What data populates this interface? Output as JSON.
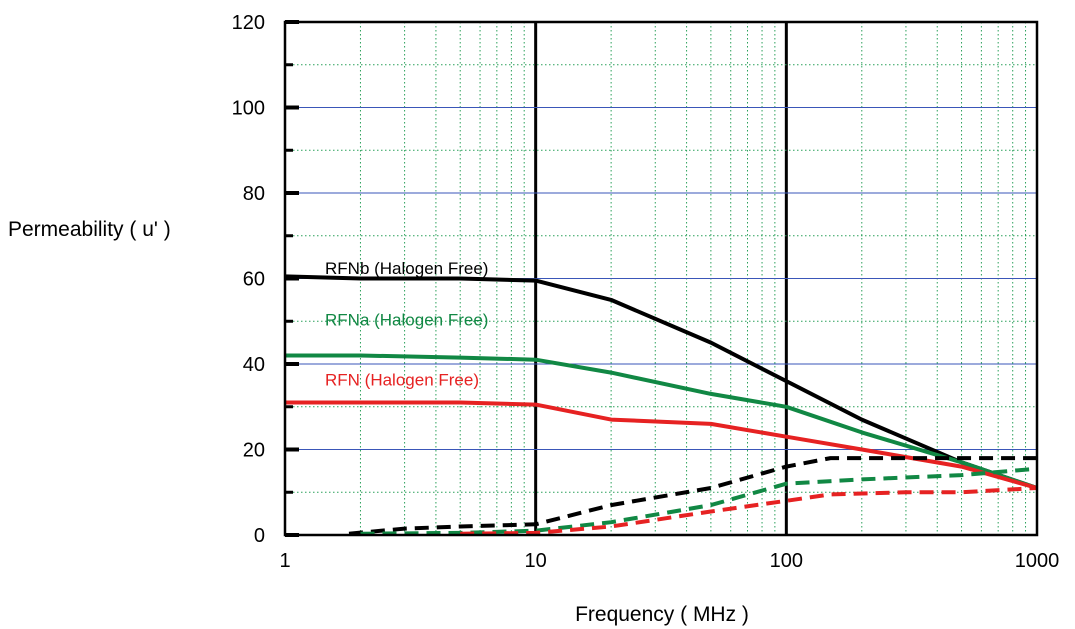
{
  "chart_data": {
    "type": "line",
    "xscale": "log",
    "xlim": [
      1,
      1000
    ],
    "ylim": [
      0,
      120
    ],
    "xlabel": "Frequency  ( MHz )",
    "ylabel": "Permeability ( u' )",
    "xticks": [
      "1",
      "10",
      "100",
      "1000"
    ],
    "yticks": [
      "0",
      "20",
      "40",
      "60",
      "80",
      "100",
      "120"
    ],
    "grid": true,
    "series": [
      {
        "name": "RFNb (Halogen Free)",
        "color": "#000000",
        "style": "solid",
        "x": [
          1,
          2,
          5,
          10,
          20,
          50,
          100,
          200,
          500,
          1000
        ],
        "y": [
          60.5,
          60,
          60,
          59.5,
          55,
          45,
          36,
          27,
          17,
          11
        ]
      },
      {
        "name": "RFNa (Halogen Free)",
        "color": "#118844",
        "style": "solid",
        "x": [
          1,
          2,
          5,
          10,
          20,
          50,
          100,
          200,
          500,
          1000
        ],
        "y": [
          42,
          42,
          41.5,
          41,
          38,
          33,
          30,
          24,
          17,
          11
        ]
      },
      {
        "name": "RFN   (Halogen Free)",
        "color": "#e62222",
        "style": "solid",
        "x": [
          1,
          2,
          5,
          10,
          20,
          50,
          100,
          200,
          500,
          1000
        ],
        "y": [
          31,
          31,
          31,
          30.5,
          27,
          26,
          23,
          20,
          16,
          11
        ]
      },
      {
        "name": "",
        "color": "#000000",
        "style": "dashed",
        "x": [
          1.8,
          3,
          5,
          10,
          20,
          50,
          100,
          150,
          300,
          500,
          1000
        ],
        "y": [
          0.3,
          1.5,
          2,
          2.5,
          7,
          11,
          16,
          18,
          18,
          18,
          18
        ]
      },
      {
        "name": "",
        "color": "#118844",
        "style": "dashed",
        "x": [
          2,
          5,
          10,
          20,
          50,
          100,
          200,
          500,
          1000
        ],
        "y": [
          0.3,
          0.5,
          1,
          3,
          7,
          12,
          13,
          14,
          15.5
        ]
      },
      {
        "name": "",
        "color": "#e62222",
        "style": "dashed",
        "x": [
          5,
          10,
          20,
          50,
          100,
          150,
          300,
          500,
          1000
        ],
        "y": [
          0.3,
          0.5,
          2,
          5.5,
          8,
          9.5,
          10,
          10,
          11
        ]
      }
    ]
  }
}
